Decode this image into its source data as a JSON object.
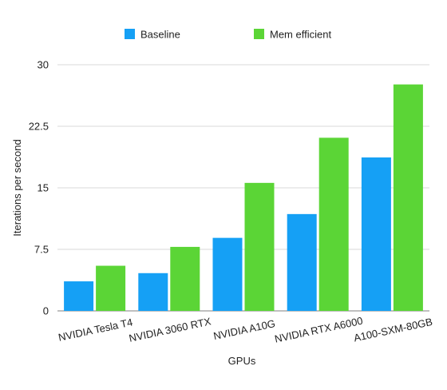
{
  "chart_data": {
    "type": "bar",
    "categories": [
      "NVIDIA Tesla T4",
      "NVIDIA 3060 RTX",
      "NVIDIA A10G",
      "NVIDIA RTX A6000",
      "A100-SXM-80GB"
    ],
    "series": [
      {
        "name": "Baseline",
        "color": "#15A0F5",
        "values": [
          3.6,
          4.6,
          8.9,
          11.8,
          18.7
        ]
      },
      {
        "name": "Mem efficient",
        "color": "#5BD536",
        "values": [
          5.5,
          7.8,
          15.6,
          21.1,
          27.6
        ]
      }
    ],
    "title": "",
    "xlabel": "GPUs",
    "ylabel": "Iterations per second",
    "ylim": [
      0,
      30
    ],
    "yticks": [
      "0",
      "7.5",
      "15",
      "22.5",
      "30"
    ],
    "grid": true,
    "legend_position": "top"
  }
}
